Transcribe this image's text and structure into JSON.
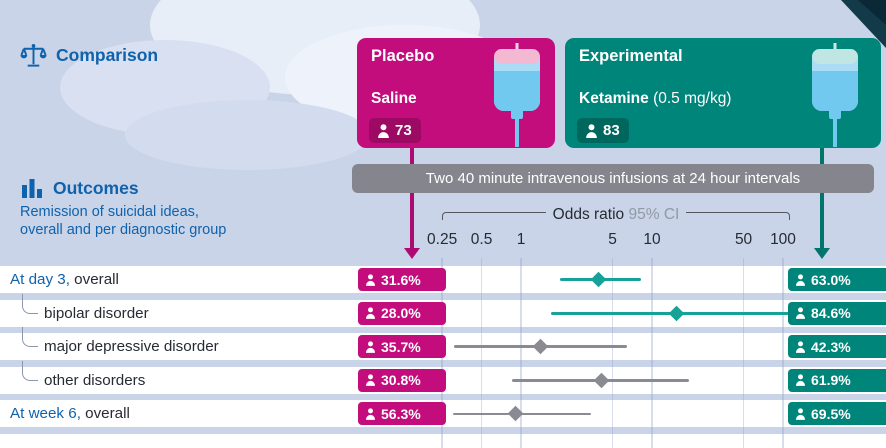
{
  "colors": {
    "bg": "#c9d4e9",
    "heading": "#0f62ab",
    "text_dark": "#272b33",
    "placebo": "#c30d7d",
    "placebo_dark": "#9c0a64",
    "placebo_arrow": "#ad0a72",
    "experimental": "#00857b",
    "experimental_dark": "#00675e",
    "experimental_arrow": "#00756b",
    "bar_gray": "#84858d",
    "significant_marker": "#16a296",
    "nonsignificant_marker": "#8a8a92",
    "ci_gray_label": "#9299a4"
  },
  "comparison": {
    "heading": "Comparison",
    "placebo": {
      "title": "Placebo",
      "subtitle": "Saline",
      "n": "73"
    },
    "experimental": {
      "title": "Experimental",
      "subtitle_bold": "Ketamine",
      "subtitle_detail": " (0.5 mg/kg)",
      "n": "83"
    },
    "infusion_note": "Two 40 minute intravenous infusions at 24 hour intervals"
  },
  "outcomes": {
    "heading": "Outcomes",
    "subtitle_line1": "Remission of suicidal ideas,",
    "subtitle_line2": "overall and per diagnostic group"
  },
  "chart_data": {
    "type": "scatter",
    "subtype": "forest-plot",
    "axis": {
      "label": "Odds ratio",
      "ci_label": "95% CI",
      "scale": "log",
      "ticks": [
        "0.25",
        "0.5",
        "1",
        "5",
        "10",
        "50",
        "100"
      ],
      "range": [
        0.25,
        100
      ]
    },
    "rows": [
      {
        "label_accent": "At day 3,",
        "label": " overall",
        "indent": false,
        "placebo_pct": "31.6%",
        "experimental_pct": "63.0%",
        "or": 3.9,
        "ci_low": 2.0,
        "ci_high": 8.2,
        "significant": true
      },
      {
        "label_accent": "",
        "label": "bipolar disorder",
        "indent": true,
        "placebo_pct": "28.0%",
        "experimental_pct": "84.6%",
        "or": 15.5,
        "ci_low": 1.7,
        "ci_high": 112,
        "significant": true
      },
      {
        "label_accent": "",
        "label": "major depressive disorder",
        "indent": true,
        "placebo_pct": "35.7%",
        "experimental_pct": "42.3%",
        "or": 1.4,
        "ci_low": 0.31,
        "ci_high": 6.4,
        "significant": false
      },
      {
        "label_accent": "",
        "label": "other disorders",
        "indent": true,
        "placebo_pct": "30.8%",
        "experimental_pct": "61.9%",
        "or": 4.1,
        "ci_low": 0.85,
        "ci_high": 19,
        "significant": false
      },
      {
        "label_accent": "At week 6,",
        "label": " overall",
        "indent": false,
        "placebo_pct": "56.3%",
        "experimental_pct": "69.5%",
        "or": 0.9,
        "ci_low": 0.3,
        "ci_high": 3.4,
        "significant": false
      },
      {
        "partial": true
      }
    ]
  }
}
